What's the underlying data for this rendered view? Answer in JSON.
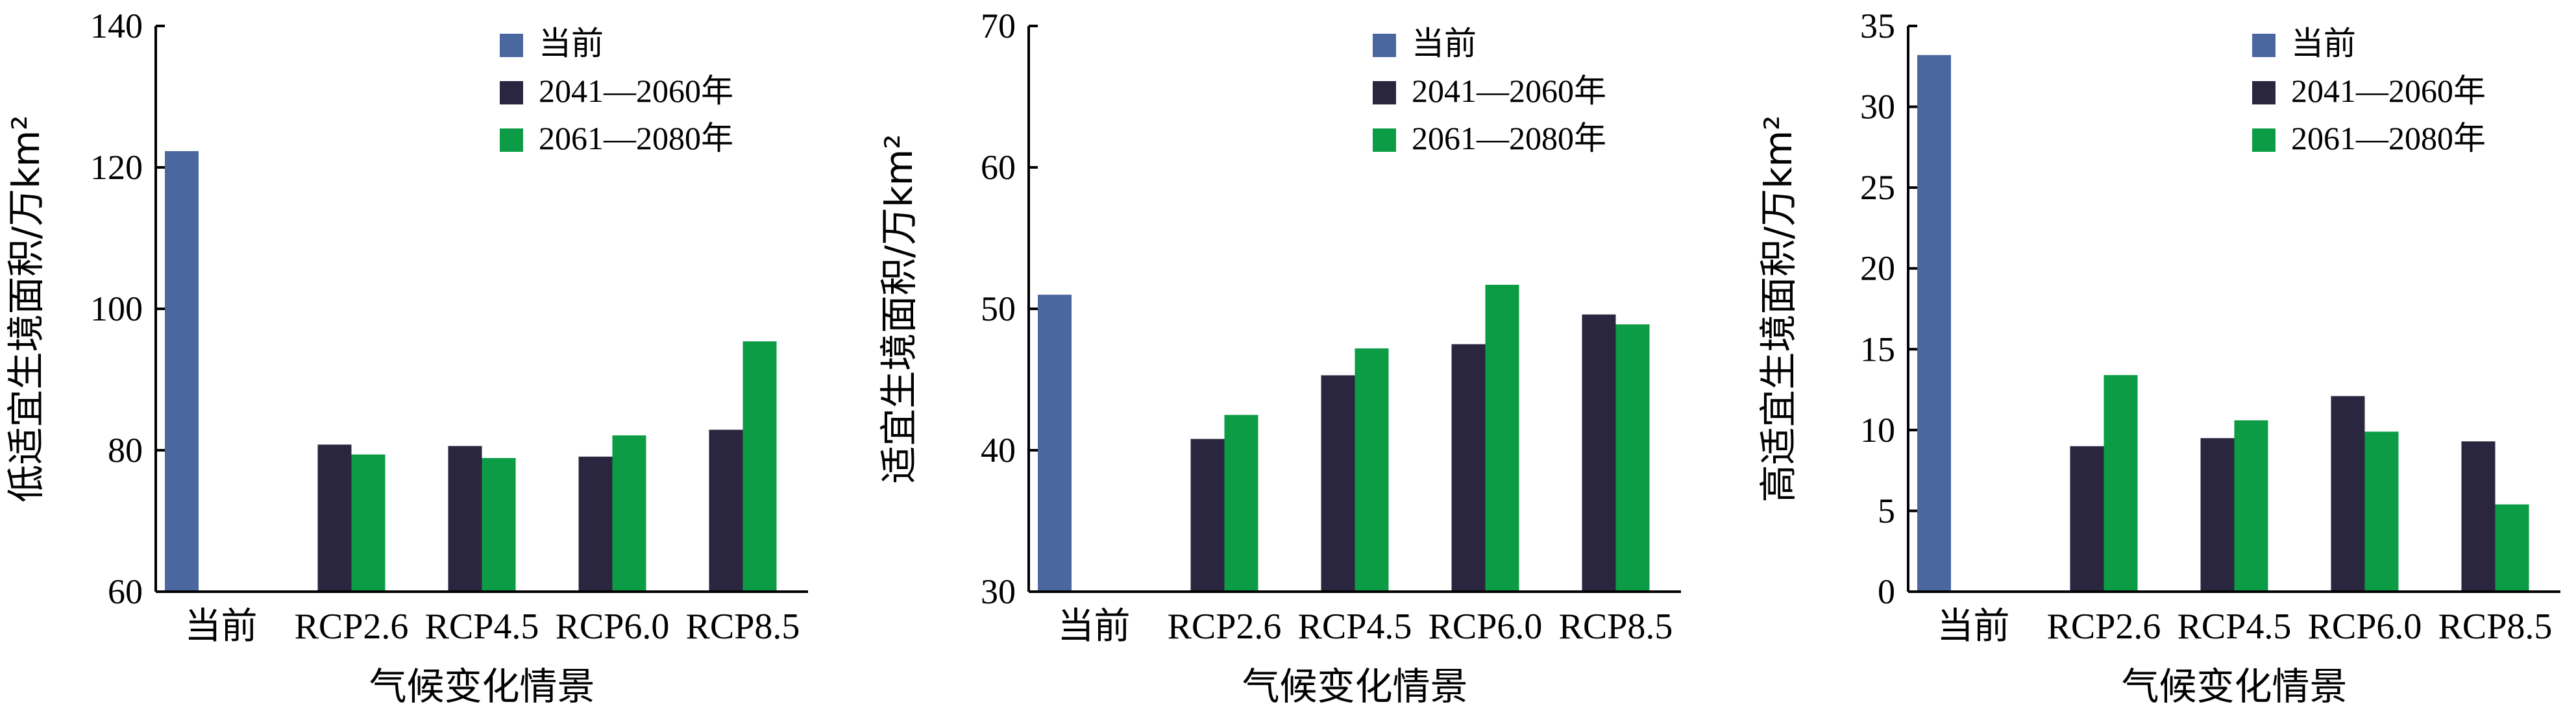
{
  "chart_data": [
    {
      "type": "bar",
      "categories": [
        "当前",
        "RCP2.6",
        "RCP4.5",
        "RCP6.0",
        "RCP8.5"
      ],
      "series": [
        {
          "name": "当前",
          "color": "#4a67a0",
          "values": [
            122.3,
            null,
            null,
            null,
            null
          ]
        },
        {
          "name": "2041—2060年",
          "color": "#2b2640",
          "values": [
            null,
            80.8,
            80.6,
            79.1,
            82.9
          ]
        },
        {
          "name": "2061—2080年",
          "color": "#0c9c46",
          "values": [
            null,
            79.4,
            78.9,
            82.1,
            95.4
          ]
        }
      ],
      "xlabel": "气候变化情景",
      "ylabel": "低适宜生境面积/万km²",
      "ylim": [
        60,
        140
      ],
      "yticks": [
        "60",
        "80",
        "100",
        "120",
        "140"
      ],
      "legend": "top-right"
    },
    {
      "type": "bar",
      "categories": [
        "当前",
        "RCP2.6",
        "RCP4.5",
        "RCP6.0",
        "RCP8.5"
      ],
      "series": [
        {
          "name": "当前",
          "color": "#4a67a0",
          "values": [
            51.0,
            null,
            null,
            null,
            null
          ]
        },
        {
          "name": "2041—2060年",
          "color": "#2b2640",
          "values": [
            null,
            40.8,
            45.3,
            47.5,
            49.6
          ]
        },
        {
          "name": "2061—2080年",
          "color": "#0c9c46",
          "values": [
            null,
            42.5,
            47.2,
            51.7,
            48.9
          ]
        }
      ],
      "xlabel": "气候变化情景",
      "ylabel": "适宜生境面积/万km²",
      "ylim": [
        30,
        70
      ],
      "yticks": [
        "30",
        "40",
        "50",
        "60",
        "70"
      ],
      "legend": "top-right"
    },
    {
      "type": "bar",
      "categories": [
        "当前",
        "RCP2.6",
        "RCP4.5",
        "RCP6.0",
        "RCP8.5"
      ],
      "series": [
        {
          "name": "当前",
          "color": "#4a67a0",
          "values": [
            33.2,
            null,
            null,
            null,
            null
          ]
        },
        {
          "name": "2041—2060年",
          "color": "#2b2640",
          "values": [
            null,
            9.0,
            9.5,
            12.1,
            9.3
          ]
        },
        {
          "name": "2061—2080年",
          "color": "#0c9c46",
          "values": [
            null,
            13.4,
            10.6,
            9.9,
            5.4
          ]
        }
      ],
      "xlabel": "气候变化情景",
      "ylabel": "高适宜生境面积/万km²",
      "ylim": [
        0,
        35
      ],
      "yticks": [
        "0",
        "5",
        "10",
        "15",
        "20",
        "25",
        "30",
        "35"
      ],
      "legend": "top-right"
    }
  ]
}
